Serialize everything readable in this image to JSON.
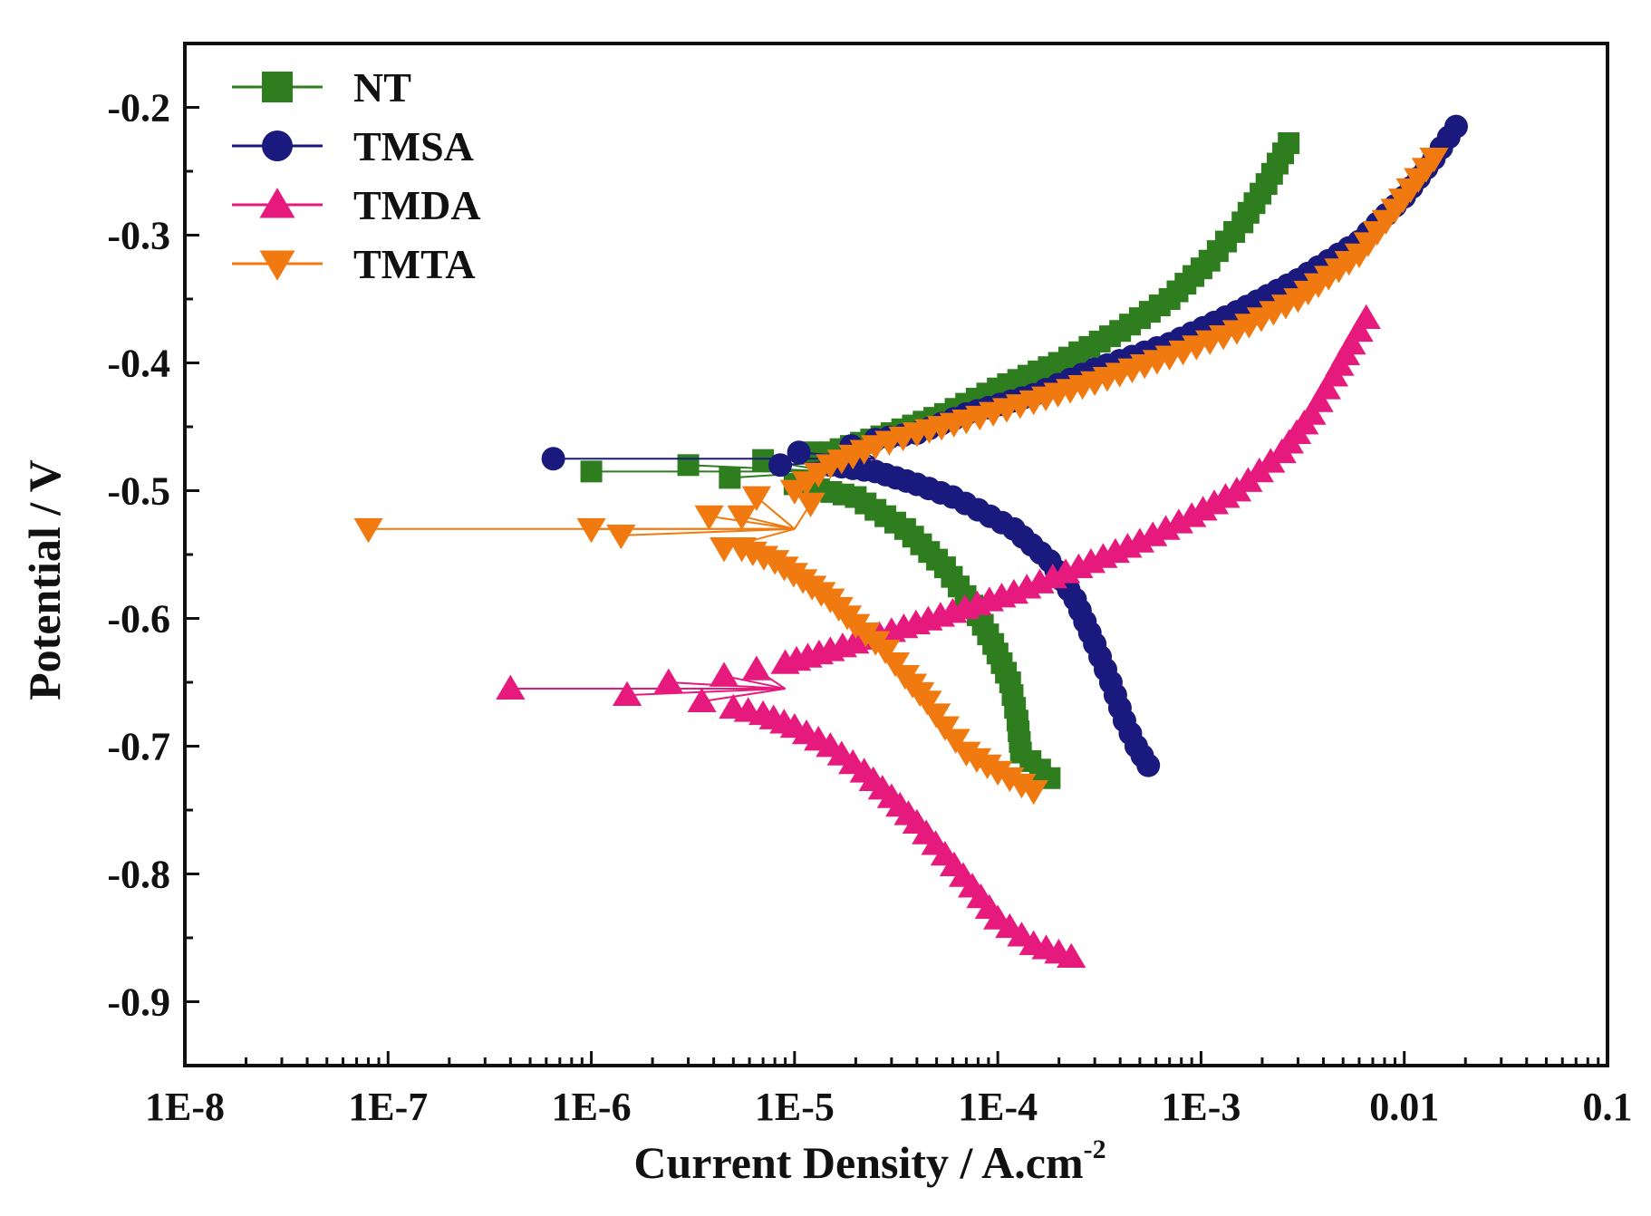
{
  "chart_data": {
    "type": "scatter",
    "title": "",
    "xlabel": "Current Density / A.cm",
    "xlabel_superscript": "-2",
    "ylabel": "Potential / V",
    "xscale": "log",
    "xlim": [
      1e-08,
      0.1
    ],
    "ylim": [
      -0.95,
      -0.15
    ],
    "x_tick_labels": [
      "1E-8",
      "1E-7",
      "1E-6",
      "1E-5",
      "1E-4",
      "1E-3",
      "0.01",
      "0.1"
    ],
    "y_ticks": [
      -0.2,
      -0.3,
      -0.4,
      -0.5,
      -0.6,
      -0.7,
      -0.8,
      -0.9
    ],
    "y_tick_labels": [
      "-0.2",
      "-0.3",
      "-0.4",
      "-0.5",
      "-0.6",
      "-0.7",
      "-0.8",
      "-0.9"
    ],
    "legend_position": "top-left",
    "grid": false,
    "series": [
      {
        "name": "NT",
        "color": "#2e7d1f",
        "marker": "square",
        "ecorr": -0.485,
        "pre_points": [
          [
            1e-06,
            -0.485
          ],
          [
            3e-06,
            -0.48
          ],
          [
            4.8e-06,
            -0.49
          ],
          [
            7e-06,
            -0.476
          ],
          [
            1.2e-05,
            -0.47
          ]
        ],
        "cathodic": [
          [
            1e-05,
            -0.495
          ],
          [
            2e-05,
            -0.505
          ],
          [
            3.5e-05,
            -0.53
          ],
          [
            5.5e-05,
            -0.56
          ],
          [
            7.5e-05,
            -0.59
          ],
          [
            9.5e-05,
            -0.62
          ],
          [
            0.000115,
            -0.65
          ],
          [
            0.000125,
            -0.68
          ],
          [
            0.00013,
            -0.705
          ],
          [
            0.00018,
            -0.725
          ]
        ],
        "anodic": [
          [
            1.5e-05,
            -0.47
          ],
          [
            3e-05,
            -0.455
          ],
          [
            5.5e-05,
            -0.44
          ],
          [
            0.0001,
            -0.42
          ],
          [
            0.0002,
            -0.4
          ],
          [
            0.0004,
            -0.375
          ],
          [
            0.0007,
            -0.35
          ],
          [
            0.0011,
            -0.32
          ],
          [
            0.0016,
            -0.29
          ],
          [
            0.0021,
            -0.26
          ],
          [
            0.0027,
            -0.228
          ]
        ]
      },
      {
        "name": "TMSA",
        "color": "#1a1a7e",
        "marker": "circle",
        "ecorr": -0.475,
        "pre_points": [
          [
            6.5e-07,
            -0.475
          ],
          [
            8.5e-06,
            -0.48
          ],
          [
            1.05e-05,
            -0.47
          ],
          [
            1.9e-05,
            -0.465
          ]
        ],
        "cathodic": [
          [
            1.5e-05,
            -0.48
          ],
          [
            2.5e-05,
            -0.485
          ],
          [
            4e-05,
            -0.495
          ],
          [
            6e-05,
            -0.505
          ],
          [
            8e-05,
            -0.515
          ],
          [
            0.00012,
            -0.53
          ],
          [
            0.00018,
            -0.555
          ],
          [
            0.00024,
            -0.585
          ],
          [
            0.0003,
            -0.62
          ],
          [
            0.00036,
            -0.65
          ],
          [
            0.00042,
            -0.68
          ],
          [
            0.00048,
            -0.7
          ],
          [
            0.00055,
            -0.715
          ]
        ],
        "anodic": [
          [
            2.5e-05,
            -0.46
          ],
          [
            4e-05,
            -0.455
          ],
          [
            7e-05,
            -0.44
          ],
          [
            0.00015,
            -0.425
          ],
          [
            0.0003,
            -0.405
          ],
          [
            0.0007,
            -0.385
          ],
          [
            0.0015,
            -0.36
          ],
          [
            0.003,
            -0.335
          ],
          [
            0.006,
            -0.305
          ],
          [
            0.01,
            -0.27
          ],
          [
            0.014,
            -0.24
          ],
          [
            0.018,
            -0.215
          ]
        ]
      },
      {
        "name": "TMDA",
        "color": "#e6197d",
        "marker": "triangle-up",
        "ecorr": -0.655,
        "pre_points": [
          [
            4e-07,
            -0.655
          ],
          [
            1.5e-06,
            -0.66
          ],
          [
            2.4e-06,
            -0.65
          ],
          [
            3.5e-06,
            -0.665
          ],
          [
            4.5e-06,
            -0.645
          ],
          [
            6.5e-06,
            -0.64
          ]
        ],
        "cathodic": [
          [
            5e-06,
            -0.67
          ],
          [
            7e-06,
            -0.675
          ],
          [
            1e-05,
            -0.685
          ],
          [
            1.5e-05,
            -0.7
          ],
          [
            2.2e-05,
            -0.72
          ],
          [
            3e-05,
            -0.74
          ],
          [
            4e-05,
            -0.76
          ],
          [
            5.5e-05,
            -0.785
          ],
          [
            7.5e-05,
            -0.81
          ],
          [
            0.0001,
            -0.835
          ],
          [
            0.00015,
            -0.855
          ],
          [
            0.00023,
            -0.865
          ]
        ],
        "anodic": [
          [
            9e-06,
            -0.635
          ],
          [
            1.5e-05,
            -0.625
          ],
          [
            3e-05,
            -0.61
          ],
          [
            6e-05,
            -0.595
          ],
          [
            0.00012,
            -0.58
          ],
          [
            0.00025,
            -0.56
          ],
          [
            0.0005,
            -0.54
          ],
          [
            0.0009,
            -0.52
          ],
          [
            0.0015,
            -0.5
          ],
          [
            0.0025,
            -0.47
          ],
          [
            0.0035,
            -0.44
          ],
          [
            0.0045,
            -0.41
          ],
          [
            0.0055,
            -0.385
          ],
          [
            0.0065,
            -0.365
          ]
        ]
      },
      {
        "name": "TMTA",
        "color": "#f07a10",
        "marker": "triangle-down",
        "ecorr": -0.53,
        "pre_points": [
          [
            8e-08,
            -0.53
          ],
          [
            1e-06,
            -0.53
          ],
          [
            1.4e-06,
            -0.535
          ],
          [
            3.8e-06,
            -0.52
          ],
          [
            4.5e-06,
            -0.545
          ],
          [
            5.5e-06,
            -0.52
          ],
          [
            6.5e-06,
            -0.505
          ],
          [
            1.2e-05,
            -0.51
          ]
        ],
        "cathodic": [
          [
            5.5e-06,
            -0.545
          ],
          [
            8e-06,
            -0.555
          ],
          [
            1.1e-05,
            -0.57
          ],
          [
            1.5e-05,
            -0.585
          ],
          [
            2e-05,
            -0.605
          ],
          [
            2.8e-05,
            -0.625
          ],
          [
            3.5e-05,
            -0.645
          ],
          [
            4.5e-05,
            -0.665
          ],
          [
            5.5e-05,
            -0.685
          ],
          [
            7e-05,
            -0.705
          ],
          [
            0.0001,
            -0.72
          ],
          [
            0.00015,
            -0.735
          ]
        ],
        "anodic": [
          [
            1e-05,
            -0.5
          ],
          [
            1.5e-05,
            -0.48
          ],
          [
            2.5e-05,
            -0.465
          ],
          [
            4e-05,
            -0.455
          ],
          [
            7e-05,
            -0.445
          ],
          [
            0.00015,
            -0.43
          ],
          [
            0.0003,
            -0.415
          ],
          [
            0.0007,
            -0.395
          ],
          [
            0.0015,
            -0.375
          ],
          [
            0.003,
            -0.35
          ],
          [
            0.006,
            -0.315
          ],
          [
            0.009,
            -0.28
          ],
          [
            0.014,
            -0.24
          ]
        ]
      }
    ]
  }
}
